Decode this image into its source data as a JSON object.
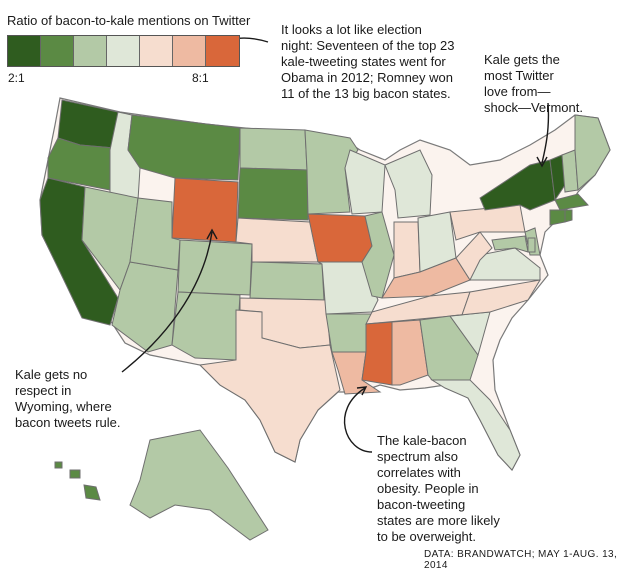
{
  "legend": {
    "title": "Ratio of bacon-to-kale mentions on Twitter",
    "min_label": "2:1",
    "max_label": "8:1",
    "swatches": [
      "#2f5c1f",
      "#5b8a44",
      "#b3c9a6",
      "#dfe7d8",
      "#f6ddcf",
      "#eebaa2",
      "#d9673a"
    ]
  },
  "annotations": {
    "election": "It looks a lot like election\nnight: Seventeen of the top 23\nkale-tweeting states went for\nObama in 2012; Romney won\n11 of the 13 big bacon states.",
    "vermont": "Kale gets the\nmost Twitter\nlove from—\nshock—Vermont.",
    "wyoming": "Kale gets no\nrespect in\nWyoming, where\nbacon tweets rule.",
    "obesity": "The kale-bacon\nspectrum also\ncorrelates with\nobesity. People in\nbacon-tweeting\nstates are more likely\nto be overweight."
  },
  "credit": "DATA: BRANDWATCH; MAY 1-AUG. 13, 2014",
  "states": [
    {
      "id": "WA",
      "level": 1
    },
    {
      "id": "OR",
      "level": 2
    },
    {
      "id": "CA",
      "level": 1
    },
    {
      "id": "ID",
      "level": 4
    },
    {
      "id": "NV",
      "level": 3
    },
    {
      "id": "AZ",
      "level": 3
    },
    {
      "id": "MT",
      "level": 2
    },
    {
      "id": "WY",
      "level": 7
    },
    {
      "id": "UT",
      "level": 3
    },
    {
      "id": "CO",
      "level": 3
    },
    {
      "id": "NM",
      "level": 3
    },
    {
      "id": "ND",
      "level": 3
    },
    {
      "id": "SD",
      "level": 2
    },
    {
      "id": "NE",
      "level": 5
    },
    {
      "id": "KS",
      "level": 3
    },
    {
      "id": "OK",
      "level": 5
    },
    {
      "id": "TX",
      "level": 5
    },
    {
      "id": "MN",
      "level": 3
    },
    {
      "id": "IA",
      "level": 7
    },
    {
      "id": "MO",
      "level": 4
    },
    {
      "id": "AR",
      "level": 3
    },
    {
      "id": "LA",
      "level": 6
    },
    {
      "id": "WI",
      "level": 4
    },
    {
      "id": "IL",
      "level": 3
    },
    {
      "id": "MI",
      "level": 4
    },
    {
      "id": "IN",
      "level": 5
    },
    {
      "id": "OH",
      "level": 4
    },
    {
      "id": "KY",
      "level": 6
    },
    {
      "id": "TN",
      "level": 5
    },
    {
      "id": "MS",
      "level": 7
    },
    {
      "id": "AL",
      "level": 6
    },
    {
      "id": "GA",
      "level": 3
    },
    {
      "id": "FL",
      "level": 4
    },
    {
      "id": "SC",
      "level": 4
    },
    {
      "id": "NC",
      "level": 5
    },
    {
      "id": "VA",
      "level": 4
    },
    {
      "id": "WV",
      "level": 5
    },
    {
      "id": "PA",
      "level": 5
    },
    {
      "id": "NY",
      "level": 1
    },
    {
      "id": "VT",
      "level": 1
    },
    {
      "id": "NH",
      "level": 3
    },
    {
      "id": "ME",
      "level": 3
    },
    {
      "id": "MA",
      "level": 2
    },
    {
      "id": "CT",
      "level": 2
    },
    {
      "id": "NJ",
      "level": 3
    },
    {
      "id": "MD",
      "level": 3
    },
    {
      "id": "DE",
      "level": 3
    },
    {
      "id": "RI",
      "level": 2
    },
    {
      "id": "AK",
      "level": 3
    },
    {
      "id": "HI",
      "level": 2
    }
  ]
}
